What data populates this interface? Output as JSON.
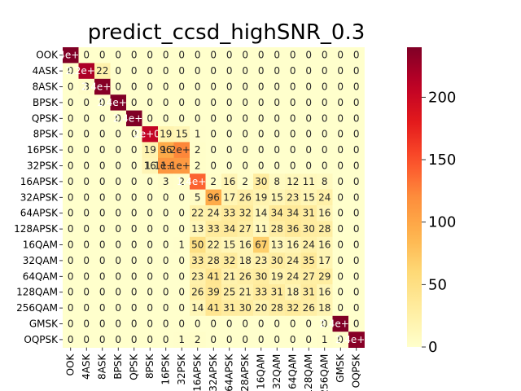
{
  "chart_data": {
    "type": "heatmap",
    "title": "predict_ccsd_highSNR_0.3",
    "xlabel": "",
    "ylabel": "",
    "row_labels": [
      "OOK",
      "4ASK",
      "8ASK",
      "BPSK",
      "QPSK",
      "8PSK",
      "16PSK",
      "32PSK",
      "16APSK",
      "32APSK",
      "64APSK",
      "128APSK",
      "16QAM",
      "32QAM",
      "64QAM",
      "128QAM",
      "256QAM",
      "GMSK",
      "OQPSK"
    ],
    "col_labels": [
      "OOK",
      "4ASK",
      "8ASK",
      "BPSK",
      "QPSK",
      "8PSK",
      "16PSK",
      "32PSK",
      "16APSK",
      "32APSK",
      "64APSK",
      "128APSK",
      "16QAM",
      "32QAM",
      "64QAM",
      "128QAM",
      "256QAM",
      "GMSK",
      "OQPSK"
    ],
    "values": [
      [
        240,
        0,
        0,
        0,
        0,
        0,
        0,
        0,
        0,
        0,
        0,
        0,
        0,
        0,
        0,
        0,
        0,
        0,
        0
      ],
      [
        0,
        218,
        22,
        0,
        0,
        0,
        0,
        0,
        0,
        0,
        0,
        0,
        0,
        0,
        0,
        0,
        0,
        0,
        0
      ],
      [
        0,
        3,
        237,
        0,
        0,
        0,
        0,
        0,
        0,
        0,
        0,
        0,
        0,
        0,
        0,
        0,
        0,
        0,
        0
      ],
      [
        0,
        0,
        0,
        240,
        0,
        0,
        0,
        0,
        0,
        0,
        0,
        0,
        0,
        0,
        0,
        0,
        0,
        0,
        0
      ],
      [
        0,
        0,
        0,
        0,
        240,
        0,
        0,
        0,
        0,
        0,
        0,
        0,
        0,
        0,
        0,
        0,
        0,
        0,
        0
      ],
      [
        0,
        0,
        0,
        0,
        0,
        205,
        19,
        15,
        1,
        0,
        0,
        0,
        0,
        0,
        0,
        0,
        0,
        0,
        0
      ],
      [
        0,
        0,
        0,
        0,
        0,
        19,
        96,
        123,
        2,
        0,
        0,
        0,
        0,
        0,
        0,
        0,
        0,
        0,
        0
      ],
      [
        0,
        0,
        0,
        0,
        0,
        16,
        112,
        110,
        2,
        0,
        0,
        0,
        0,
        0,
        0,
        0,
        0,
        0,
        0
      ],
      [
        0,
        0,
        0,
        0,
        0,
        0,
        3,
        2,
        140,
        2,
        16,
        2,
        30,
        8,
        12,
        11,
        8,
        0,
        0
      ],
      [
        0,
        0,
        0,
        0,
        0,
        0,
        0,
        0,
        5,
        96,
        17,
        26,
        19,
        15,
        23,
        15,
        24,
        0,
        0
      ],
      [
        0,
        0,
        0,
        0,
        0,
        0,
        0,
        0,
        22,
        24,
        33,
        32,
        14,
        34,
        34,
        31,
        16,
        0,
        0
      ],
      [
        0,
        0,
        0,
        0,
        0,
        0,
        0,
        0,
        13,
        33,
        34,
        27,
        11,
        28,
        36,
        30,
        28,
        0,
        0
      ],
      [
        0,
        0,
        0,
        0,
        0,
        0,
        0,
        1,
        50,
        22,
        15,
        16,
        67,
        13,
        16,
        24,
        16,
        0,
        0
      ],
      [
        0,
        0,
        0,
        0,
        0,
        0,
        0,
        0,
        33,
        28,
        32,
        18,
        23,
        30,
        24,
        35,
        17,
        0,
        0
      ],
      [
        0,
        0,
        0,
        0,
        0,
        0,
        0,
        0,
        23,
        41,
        21,
        26,
        30,
        19,
        24,
        27,
        29,
        0,
        0
      ],
      [
        0,
        0,
        0,
        0,
        0,
        0,
        0,
        0,
        26,
        39,
        25,
        21,
        33,
        31,
        18,
        31,
        16,
        0,
        0
      ],
      [
        0,
        0,
        0,
        0,
        0,
        0,
        0,
        0,
        14,
        41,
        31,
        30,
        20,
        28,
        32,
        26,
        18,
        0,
        0
      ],
      [
        0,
        0,
        0,
        0,
        0,
        0,
        0,
        0,
        0,
        0,
        0,
        0,
        0,
        0,
        0,
        0,
        0,
        240,
        0
      ],
      [
        0,
        0,
        0,
        0,
        0,
        0,
        0,
        1,
        2,
        0,
        0,
        0,
        0,
        0,
        0,
        0,
        1,
        0,
        236
      ]
    ],
    "display_text": [
      [
        "2.4e+02",
        "0",
        "0",
        "0",
        "0",
        "0",
        "0",
        "0",
        "0",
        "0",
        "0",
        "0",
        "0",
        "0",
        "0",
        "0",
        "0",
        "0",
        "0"
      ],
      [
        "0",
        "2.2e+02",
        "22",
        "0",
        "0",
        "0",
        "0",
        "0",
        "0",
        "0",
        "0",
        "0",
        "0",
        "0",
        "0",
        "0",
        "0",
        "0",
        "0"
      ],
      [
        "0",
        "3",
        "2.4e+02",
        "0",
        "0",
        "0",
        "0",
        "0",
        "0",
        "0",
        "0",
        "0",
        "0",
        "0",
        "0",
        "0",
        "0",
        "0",
        "0"
      ],
      [
        "0",
        "0",
        "0",
        "2.4e+02",
        "0",
        "0",
        "0",
        "0",
        "0",
        "0",
        "0",
        "0",
        "0",
        "0",
        "0",
        "0",
        "0",
        "0",
        "0"
      ],
      [
        "0",
        "0",
        "0",
        "0",
        "2.4e+02",
        "0",
        "0",
        "0",
        "0",
        "0",
        "0",
        "0",
        "0",
        "0",
        "0",
        "0",
        "0",
        "0",
        "0"
      ],
      [
        "0",
        "0",
        "0",
        "0",
        "0",
        "2e+02",
        "19",
        "15",
        "1",
        "0",
        "0",
        "0",
        "0",
        "0",
        "0",
        "0",
        "0",
        "0",
        "0"
      ],
      [
        "0",
        "0",
        "0",
        "0",
        "0",
        "19",
        "96",
        "1.2e+02",
        "2",
        "0",
        "0",
        "0",
        "0",
        "0",
        "0",
        "0",
        "0",
        "0",
        "0"
      ],
      [
        "0",
        "0",
        "0",
        "0",
        "0",
        "16",
        "1.1e+02",
        "1.1e+02",
        "2",
        "0",
        "0",
        "0",
        "0",
        "0",
        "0",
        "0",
        "0",
        "0",
        "0"
      ],
      [
        "0",
        "0",
        "0",
        "0",
        "0",
        "0",
        "3",
        "2",
        "1.4e+02",
        "2",
        "16",
        "2",
        "30",
        "8",
        "12",
        "11",
        "8",
        "0",
        "0"
      ],
      [
        "0",
        "0",
        "0",
        "0",
        "0",
        "0",
        "0",
        "0",
        "5",
        "96",
        "17",
        "26",
        "19",
        "15",
        "23",
        "15",
        "24",
        "0",
        "0"
      ],
      [
        "0",
        "0",
        "0",
        "0",
        "0",
        "0",
        "0",
        "0",
        "22",
        "24",
        "33",
        "32",
        "14",
        "34",
        "34",
        "31",
        "16",
        "0",
        "0"
      ],
      [
        "0",
        "0",
        "0",
        "0",
        "0",
        "0",
        "0",
        "0",
        "13",
        "33",
        "34",
        "27",
        "11",
        "28",
        "36",
        "30",
        "28",
        "0",
        "0"
      ],
      [
        "0",
        "0",
        "0",
        "0",
        "0",
        "0",
        "0",
        "1",
        "50",
        "22",
        "15",
        "16",
        "67",
        "13",
        "16",
        "24",
        "16",
        "0",
        "0"
      ],
      [
        "0",
        "0",
        "0",
        "0",
        "0",
        "0",
        "0",
        "0",
        "33",
        "28",
        "32",
        "18",
        "23",
        "30",
        "24",
        "35",
        "17",
        "0",
        "0"
      ],
      [
        "0",
        "0",
        "0",
        "0",
        "0",
        "0",
        "0",
        "0",
        "23",
        "41",
        "21",
        "26",
        "30",
        "19",
        "24",
        "27",
        "29",
        "0",
        "0"
      ],
      [
        "0",
        "0",
        "0",
        "0",
        "0",
        "0",
        "0",
        "0",
        "26",
        "39",
        "25",
        "21",
        "33",
        "31",
        "18",
        "31",
        "16",
        "0",
        "0"
      ],
      [
        "0",
        "0",
        "0",
        "0",
        "0",
        "0",
        "0",
        "0",
        "14",
        "41",
        "31",
        "30",
        "20",
        "28",
        "32",
        "26",
        "18",
        "0",
        "0"
      ],
      [
        "0",
        "0",
        "0",
        "0",
        "0",
        "0",
        "0",
        "0",
        "0",
        "0",
        "0",
        "0",
        "0",
        "0",
        "0",
        "0",
        "0",
        "2.4e+02",
        "0"
      ],
      [
        "0",
        "0",
        "0",
        "0",
        "0",
        "0",
        "0",
        "1",
        "2",
        "0",
        "0",
        "0",
        "0",
        "0",
        "0",
        "0",
        "1",
        "0",
        "2.4e+02"
      ]
    ],
    "colormap": "YlOrRd",
    "vmin": 0,
    "vmax": 240,
    "colorbar_ticks": [
      0,
      50,
      100,
      150,
      200
    ],
    "grid": false,
    "legend": "colorbar-right"
  }
}
